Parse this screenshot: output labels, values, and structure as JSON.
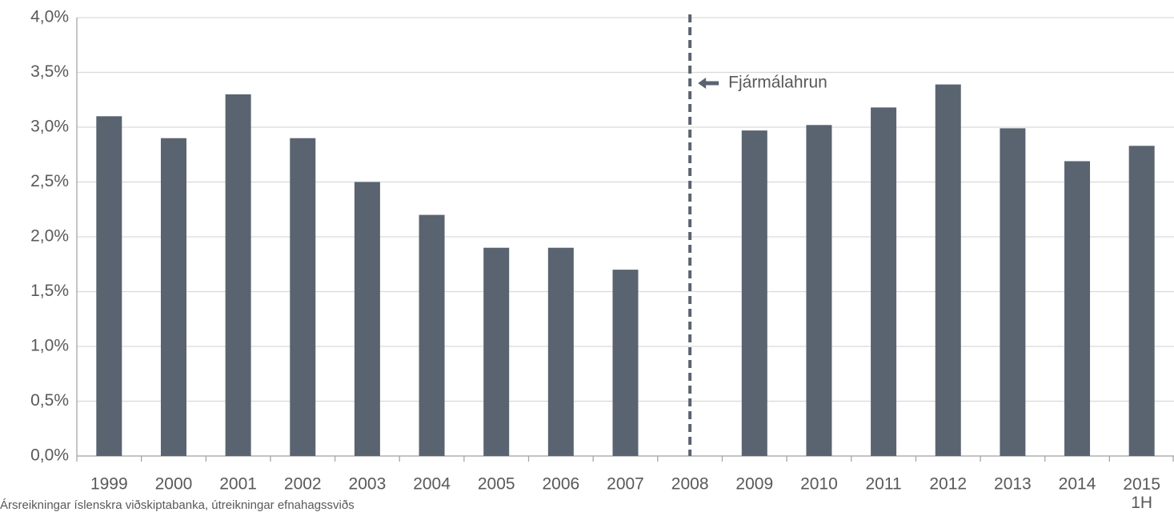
{
  "chart_data": {
    "type": "bar",
    "categories": [
      "1999",
      "2000",
      "2001",
      "2002",
      "2003",
      "2004",
      "2005",
      "2006",
      "2007",
      "2008",
      "2009",
      "2010",
      "2011",
      "2012",
      "2013",
      "2014",
      "2015\n1H"
    ],
    "values": [
      3.1,
      2.9,
      3.3,
      2.9,
      2.5,
      2.2,
      1.9,
      1.9,
      1.7,
      null,
      2.97,
      3.02,
      3.18,
      3.39,
      2.99,
      2.69,
      2.83
    ],
    "color": "#5a6470",
    "ylim": [
      0,
      4
    ],
    "yticks": [
      {
        "value": 0,
        "label": "0,0%"
      },
      {
        "value": 0.5,
        "label": "0,5%"
      },
      {
        "value": 1,
        "label": "1,0%"
      },
      {
        "value": 1.5,
        "label": "1,5%"
      },
      {
        "value": 2,
        "label": "2,0%"
      },
      {
        "value": 2.5,
        "label": "2,5%"
      },
      {
        "value": 3,
        "label": "3,0%"
      },
      {
        "value": 3.5,
        "label": "3,5%"
      },
      {
        "value": 4,
        "label": "4,0%"
      }
    ],
    "grid": true,
    "annotation": {
      "text": "Fjármálahrun",
      "category": "2008"
    },
    "source": "Ársreikningar íslenskra viðskiptabanka, útreikningar efnahagssviðs"
  }
}
